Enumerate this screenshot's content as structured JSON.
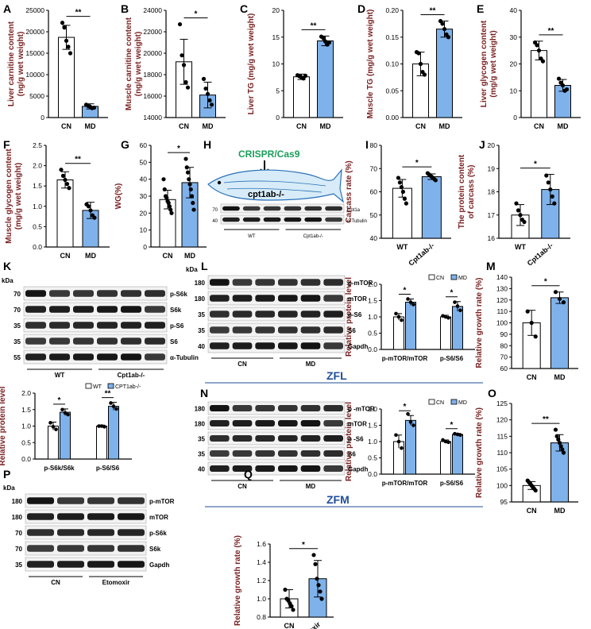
{
  "colors": {
    "cn_fill": "#ffffff",
    "md_fill": "#7fb2ea",
    "axis_label": "#7a1f1f",
    "zf": "#1f4e9a",
    "crispr": "#1a9e5a"
  },
  "charts": [
    {
      "id": "A",
      "type": "bar",
      "ylabel": "Liver carnitine content\n(ng/g wet weight)",
      "ticks": [
        "0",
        "5000",
        "10000",
        "15000",
        "20000",
        "25000"
      ],
      "ylim": [
        0,
        25000
      ],
      "categories": [
        "CN",
        "MD"
      ],
      "values": [
        18700,
        2600
      ],
      "errors": [
        2800,
        600
      ],
      "points": [
        [
          22100,
          21000,
          17900,
          16500,
          15000
        ],
        [
          3000,
          2700,
          2500,
          2200,
          2300
        ]
      ],
      "sig": "**"
    },
    {
      "id": "B",
      "type": "bar",
      "ylabel": "Muscle carnitine content\n(ng/g wet weight)",
      "ticks": [
        "14000",
        "16000",
        "18000",
        "20000",
        "22000",
        "24000"
      ],
      "ylim": [
        14000,
        24000
      ],
      "categories": [
        "CN",
        "MD"
      ],
      "values": [
        19200,
        16100
      ],
      "errors": [
        2100,
        1200
      ],
      "points": [
        [
          22700,
          19800,
          18900,
          17300,
          16800
        ],
        [
          17600,
          16700,
          16200,
          15600,
          15200
        ]
      ],
      "sig": "*"
    },
    {
      "id": "C",
      "type": "bar",
      "ylabel": "Liver TG (mg/g wet weight)",
      "ticks": [
        "0",
        "5",
        "10",
        "15",
        "20"
      ],
      "ylim": [
        0,
        20
      ],
      "categories": [
        "CN",
        "MD"
      ],
      "values": [
        7.6,
        14.3
      ],
      "errors": [
        0.5,
        0.9
      ],
      "points": [
        [
          7.9,
          7.7,
          7.5,
          7.3,
          7.8
        ],
        [
          15.1,
          14.8,
          14.2,
          13.6,
          14.0
        ]
      ],
      "sig": "**"
    },
    {
      "id": "D",
      "type": "bar",
      "ylabel": "Muscle TG (mg/g wet weight)",
      "ticks": [
        "0.00",
        "0.05",
        "0.10",
        "0.15",
        "0.20"
      ],
      "ylim": [
        0,
        0.2
      ],
      "categories": [
        "CN",
        "MD"
      ],
      "values": [
        0.1,
        0.165
      ],
      "errors": [
        0.022,
        0.015
      ],
      "points": [
        [
          0.122,
          0.12,
          0.1,
          0.085,
          0.08
        ],
        [
          0.18,
          0.175,
          0.165,
          0.155,
          0.15
        ]
      ],
      "sig": "**"
    },
    {
      "id": "E",
      "type": "bar",
      "ylabel": "Liver glycogen content\n(mg/g wet weight)",
      "ticks": [
        "0",
        "10",
        "20",
        "30",
        "40"
      ],
      "ylim": [
        0,
        40
      ],
      "categories": [
        "CN",
        "MD"
      ],
      "values": [
        25,
        12
      ],
      "errors": [
        3.5,
        2.2
      ],
      "points": [
        [
          28,
          27,
          25,
          22,
          21
        ],
        [
          14.5,
          13,
          12,
          10,
          10.5
        ]
      ],
      "sig": "**"
    },
    {
      "id": "F",
      "type": "bar",
      "ylabel": "Muscle glycogen content\n(mg/g wet weight)",
      "ticks": [
        "0.0",
        "0.5",
        "1.0",
        "1.5",
        "2.0",
        "2.5"
      ],
      "ylim": [
        0,
        2.5
      ],
      "categories": [
        "CN",
        "MD"
      ],
      "values": [
        1.65,
        0.9
      ],
      "errors": [
        0.2,
        0.2
      ],
      "points": [
        [
          1.9,
          1.75,
          1.65,
          1.55,
          1.45
        ],
        [
          1.05,
          1.0,
          0.9,
          0.78,
          0.72
        ]
      ],
      "sig": "**"
    },
    {
      "id": "G",
      "type": "bar",
      "ylabel": "WG(%)",
      "ticks": [
        "0",
        "10",
        "20",
        "30",
        "40",
        "50",
        "60"
      ],
      "ylim": [
        0,
        60
      ],
      "categories": [
        "CN",
        "MD"
      ],
      "values": [
        28,
        38
      ],
      "errors": [
        5.5,
        9
      ],
      "points": [
        [
          40,
          34,
          30,
          29,
          27,
          26,
          24,
          22,
          20
        ],
        [
          52,
          47,
          44,
          40,
          37,
          34,
          30,
          26,
          22
        ]
      ],
      "sig": "*"
    },
    {
      "id": "I",
      "type": "bar",
      "ylabel": "Carcass rate (%)",
      "ticks": [
        "40",
        "50",
        "60",
        "70",
        "80"
      ],
      "ylim": [
        40,
        80
      ],
      "categories": [
        "WT",
        "Cpt1ab-/-"
      ],
      "values": [
        61.5,
        66.5
      ],
      "errors": [
        3.8,
        1.2
      ],
      "points": [
        [
          66,
          64,
          62,
          60,
          57,
          55
        ],
        [
          68,
          67.5,
          67,
          66.5,
          66,
          65.5,
          65
        ]
      ],
      "sig": "*"
    },
    {
      "id": "J",
      "type": "bar",
      "ylabel": "The protein content\nof carcass (%)",
      "ticks": [
        "16",
        "17",
        "18",
        "19",
        "20"
      ],
      "ylim": [
        16,
        20
      ],
      "categories": [
        "WT",
        "Cpt1ab-/-"
      ],
      "values": [
        17.0,
        18.1
      ],
      "errors": [
        0.45,
        0.65
      ],
      "points": [
        [
          17.5,
          17.2,
          17.0,
          16.8,
          16.7
        ],
        [
          18.7,
          18.4,
          18.1,
          17.8,
          17.5
        ]
      ],
      "sig": "*"
    },
    {
      "id": "M",
      "type": "bar",
      "ylabel": "Relative growth rate (%)",
      "ticks": [
        "60",
        "70",
        "80",
        "90",
        "100",
        "110",
        "120",
        "130",
        "140"
      ],
      "ylim": [
        60,
        140
      ],
      "categories": [
        "CN",
        "MD"
      ],
      "values": [
        100,
        122
      ],
      "errors": [
        11,
        5
      ],
      "points": [
        [
          110,
          100,
          88
        ],
        [
          127,
          121,
          118
        ]
      ],
      "sig": "*"
    },
    {
      "id": "O",
      "type": "bar",
      "ylabel": "Relative growth rate (%)",
      "ticks": [
        "95",
        "100",
        "105",
        "110",
        "115",
        "120",
        "125"
      ],
      "ylim": [
        95,
        125
      ],
      "categories": [
        "CN",
        "MD"
      ],
      "values": [
        100,
        113
      ],
      "errors": [
        1.2,
        2.5
      ],
      "points": [
        [
          101.5,
          101,
          100.5,
          100,
          99.5,
          99,
          98.5
        ],
        [
          117,
          115,
          114,
          113,
          112,
          111,
          110
        ]
      ],
      "sig": "**"
    },
    {
      "id": "Q",
      "type": "bar",
      "ylabel": "Relative growth rate (%)",
      "ticks": [
        "0.8",
        "1.0",
        "1.2",
        "1.4",
        "1.6"
      ],
      "ylim": [
        0.8,
        1.6
      ],
      "categories": [
        "CN",
        "Etomoxir"
      ],
      "values": [
        1.0,
        1.22
      ],
      "errors": [
        0.1,
        0.2
      ],
      "points": [
        [
          1.1,
          1.0,
          0.98,
          0.95,
          0.92,
          0.88
        ],
        [
          1.48,
          1.38,
          1.22,
          1.15,
          1.08,
          1.0
        ]
      ],
      "sig": "*"
    },
    {
      "id": "K2",
      "type": "grouped",
      "ylabel": "Relative protein level",
      "ticks": [
        "0.0",
        "0.5",
        "1.0",
        "1.5",
        "2.0"
      ],
      "ylim": [
        0,
        2
      ],
      "categories": [
        "p-S6k/S6k",
        "p-S6/S6"
      ],
      "series": [
        {
          "name": "WT",
          "values": [
            1.0,
            1.0
          ],
          "errors": [
            0.12,
            0.03
          ],
          "points": [
            [
              1.1,
              0.98,
              0.9
            ],
            [
              1.0,
              1.0,
              0.98
            ]
          ]
        },
        {
          "name": "CPT1ab-/-",
          "values": [
            1.42,
            1.6
          ],
          "errors": [
            0.1,
            0.12
          ],
          "points": [
            [
              1.5,
              1.4,
              1.35
            ],
            [
              1.7,
              1.6,
              1.52
            ]
          ]
        }
      ],
      "sig": [
        "*",
        "**"
      ]
    },
    {
      "id": "L2",
      "type": "grouped",
      "ylabel": "Relative protein level",
      "ticks": [
        "0.0",
        "0.5",
        "1.0",
        "1.5",
        "2.0"
      ],
      "ylim": [
        0,
        2
      ],
      "categories": [
        "p-mTOR/mTOR",
        "p-S6/S6"
      ],
      "series": [
        {
          "name": "CN",
          "values": [
            1.0,
            1.0
          ],
          "errors": [
            0.1,
            0.05
          ],
          "points": [
            [
              1.1,
              1.0,
              0.9
            ],
            [
              1.03,
              1.0,
              0.97
            ]
          ]
        },
        {
          "name": "MD",
          "values": [
            1.45,
            1.32
          ],
          "errors": [
            0.1,
            0.15
          ],
          "points": [
            [
              1.55,
              1.45,
              1.38
            ],
            [
              1.45,
              1.33,
              1.2
            ]
          ]
        }
      ],
      "sig": [
        "*",
        "*"
      ]
    },
    {
      "id": "N2",
      "type": "grouped",
      "ylabel": "Relative protein level",
      "ticks": [
        "0.0",
        "0.5",
        "1.0",
        "1.5",
        "2.0"
      ],
      "ylim": [
        0,
        2
      ],
      "categories": [
        "p-mTOR/mTOR",
        "p-S6/S6"
      ],
      "series": [
        {
          "name": "CN",
          "values": [
            1.0,
            1.0
          ],
          "errors": [
            0.2,
            0.05
          ],
          "points": [
            [
              1.2,
              1.0,
              0.8
            ],
            [
              1.05,
              1.0,
              0.98
            ]
          ]
        },
        {
          "name": "MD",
          "values": [
            1.65,
            1.22
          ],
          "errors": [
            0.15,
            0.03
          ],
          "points": [
            [
              1.85,
              1.6,
              1.5
            ],
            [
              1.24,
              1.22,
              1.2
            ]
          ]
        }
      ],
      "sig": [
        "*",
        "*"
      ]
    }
  ],
  "panel_letters": [
    "A",
    "B",
    "C",
    "D",
    "E",
    "F",
    "G",
    "H",
    "I",
    "J",
    "K",
    "L",
    "M",
    "N",
    "O",
    "P",
    "Q"
  ],
  "panel_h": {
    "title": "CRISPR/Cas9",
    "fish_label": "cpt1ab-/-",
    "bands": [
      "Cpt1a",
      "α-Tubulin"
    ],
    "kda": [
      "70",
      "40"
    ],
    "groups": [
      "WT",
      "Cpt1ab-/-"
    ]
  },
  "panel_k": {
    "kda_title": "kDa",
    "kda": [
      "70",
      "70",
      "35",
      "35",
      "55"
    ],
    "bands": [
      "p-S6k",
      "S6k",
      "p-S6",
      "S6",
      "α-Tubulin"
    ],
    "groups": [
      "WT",
      "Cpt1ab-/-"
    ]
  },
  "panel_l": {
    "kda_title": "kDa",
    "kda": [
      "180",
      "180",
      "35",
      "35",
      "40"
    ],
    "bands": [
      "p-mTOR",
      "mTOR",
      "p-S6",
      "S6",
      "Gapdh"
    ],
    "groups": [
      "CN",
      "MD"
    ],
    "zf": "ZFL"
  },
  "panel_n": {
    "kda": [
      "180",
      "180",
      "35",
      "35",
      "40"
    ],
    "bands": [
      "p -mTOR",
      "mTOR",
      "p -S6",
      "S6",
      "Gapdh"
    ],
    "groups": [
      "CN",
      "MD"
    ],
    "zf": "ZFM"
  },
  "panel_p": {
    "kda_title": "kDa",
    "kda": [
      "180",
      "180",
      "70",
      "70",
      "35"
    ],
    "bands": [
      "p-mTOR",
      "mTOR",
      "p-S6k",
      "S6k",
      "Gapdh"
    ],
    "groups": [
      "CN",
      "Etomoxir"
    ]
  }
}
